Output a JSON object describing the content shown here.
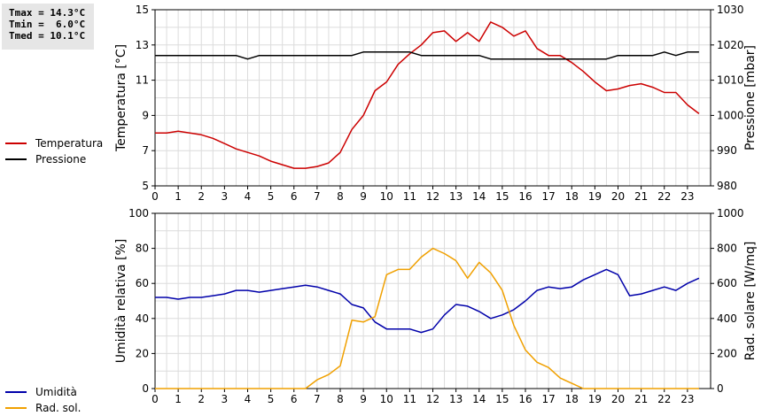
{
  "stats": {
    "tmax": "Tmax = 14.3°C",
    "tmin": "Tmin =  6.0°C",
    "tmed": "Tmed = 10.1°C"
  },
  "legend_top": [
    {
      "label": "Temperatura",
      "color": "#cc0000"
    },
    {
      "label": "Pressione",
      "color": "#000000"
    }
  ],
  "legend_bottom": [
    {
      "label": "Umidità",
      "color": "#0000aa"
    },
    {
      "label": "Rad. sol.",
      "color": "#f0a000"
    }
  ],
  "chart_data": [
    {
      "type": "line",
      "ylabel": "Temperatura [°C]",
      "y2label": "Pressione [mbar]",
      "xlim": [
        0,
        24
      ],
      "x_ticks": [
        0,
        1,
        2,
        3,
        4,
        5,
        6,
        7,
        8,
        9,
        10,
        11,
        12,
        13,
        14,
        15,
        16,
        17,
        18,
        19,
        20,
        21,
        22,
        23
      ],
      "ylim": [
        5,
        15
      ],
      "y_ticks": [
        5,
        7,
        9,
        11,
        13,
        15
      ],
      "y2lim": [
        980,
        1030
      ],
      "y2_ticks": [
        980,
        990,
        1000,
        1010,
        1020,
        1030
      ],
      "grid": true,
      "x": [
        0,
        0.5,
        1,
        1.5,
        2,
        2.5,
        3,
        3.5,
        4,
        4.5,
        5,
        5.5,
        6,
        6.5,
        7,
        7.5,
        8,
        8.5,
        9,
        9.5,
        10,
        10.5,
        11,
        11.5,
        12,
        12.5,
        13,
        13.5,
        14,
        14.5,
        15,
        15.5,
        16,
        16.5,
        17,
        17.5,
        18,
        18.5,
        19,
        19.5,
        20,
        20.5,
        21,
        21.5,
        22,
        22.5,
        23,
        23.5
      ],
      "series": [
        {
          "name": "Temperatura",
          "axis": "left",
          "color": "#cc0000",
          "values": [
            8.0,
            8.0,
            8.1,
            8.0,
            7.9,
            7.7,
            7.4,
            7.1,
            6.9,
            6.7,
            6.4,
            6.2,
            6.0,
            6.0,
            6.1,
            6.3,
            6.9,
            8.2,
            9.0,
            10.4,
            10.9,
            11.9,
            12.5,
            13.0,
            13.7,
            13.8,
            13.2,
            13.7,
            13.2,
            14.3,
            14.0,
            13.5,
            13.8,
            12.8,
            12.4,
            12.4,
            12.0,
            11.5,
            10.9,
            10.4,
            10.5,
            10.7,
            10.8,
            10.6,
            10.3,
            10.3,
            9.6,
            9.1
          ]
        },
        {
          "name": "Pressione",
          "axis": "right",
          "color": "#000000",
          "values": [
            1017,
            1017,
            1017,
            1017,
            1017,
            1017,
            1017,
            1017,
            1016,
            1017,
            1017,
            1017,
            1017,
            1017,
            1017,
            1017,
            1017,
            1017,
            1018,
            1018,
            1018,
            1018,
            1018,
            1017,
            1017,
            1017,
            1017,
            1017,
            1017,
            1016,
            1016,
            1016,
            1016,
            1016,
            1016,
            1016,
            1016,
            1016,
            1016,
            1016,
            1017,
            1017,
            1017,
            1017,
            1018,
            1017,
            1018,
            1018
          ]
        }
      ]
    },
    {
      "type": "line",
      "ylabel": "Umidità relativa [%]",
      "y2label": "Rad. solare [W/mq]",
      "xlim": [
        0,
        24
      ],
      "x_ticks": [
        0,
        1,
        2,
        3,
        4,
        5,
        6,
        7,
        8,
        9,
        10,
        11,
        12,
        13,
        14,
        15,
        16,
        17,
        18,
        19,
        20,
        21,
        22,
        23
      ],
      "ylim": [
        0,
        100
      ],
      "y_ticks": [
        0,
        20,
        40,
        60,
        80,
        100
      ],
      "y2lim": [
        0,
        1000
      ],
      "y2_ticks": [
        0,
        200,
        400,
        600,
        800,
        1000
      ],
      "grid": true,
      "x": [
        0,
        0.5,
        1,
        1.5,
        2,
        2.5,
        3,
        3.5,
        4,
        4.5,
        5,
        5.5,
        6,
        6.5,
        7,
        7.5,
        8,
        8.5,
        9,
        9.5,
        10,
        10.5,
        11,
        11.5,
        12,
        12.5,
        13,
        13.5,
        14,
        14.5,
        15,
        15.5,
        16,
        16.5,
        17,
        17.5,
        18,
        18.5,
        19,
        19.5,
        20,
        20.5,
        21,
        21.5,
        22,
        22.5,
        23,
        23.5
      ],
      "series": [
        {
          "name": "Umidità",
          "axis": "left",
          "color": "#0000aa",
          "values": [
            52,
            52,
            51,
            52,
            52,
            53,
            54,
            56,
            56,
            55,
            56,
            57,
            58,
            59,
            58,
            56,
            54,
            48,
            46,
            38,
            34,
            34,
            34,
            32,
            34,
            42,
            48,
            47,
            44,
            40,
            42,
            45,
            50,
            56,
            58,
            57,
            58,
            62,
            65,
            68,
            65,
            53,
            54,
            56,
            58,
            56,
            60,
            63
          ]
        },
        {
          "name": "Rad. sol.",
          "axis": "right",
          "color": "#f0a000",
          "values": [
            0,
            0,
            0,
            0,
            0,
            0,
            0,
            0,
            0,
            0,
            0,
            0,
            0,
            0,
            50,
            80,
            130,
            390,
            380,
            410,
            650,
            680,
            680,
            750,
            800,
            770,
            730,
            630,
            720,
            660,
            560,
            360,
            220,
            150,
            120,
            60,
            30,
            0,
            0,
            0,
            0,
            0,
            0,
            0,
            0,
            0,
            0,
            0
          ]
        }
      ]
    }
  ]
}
